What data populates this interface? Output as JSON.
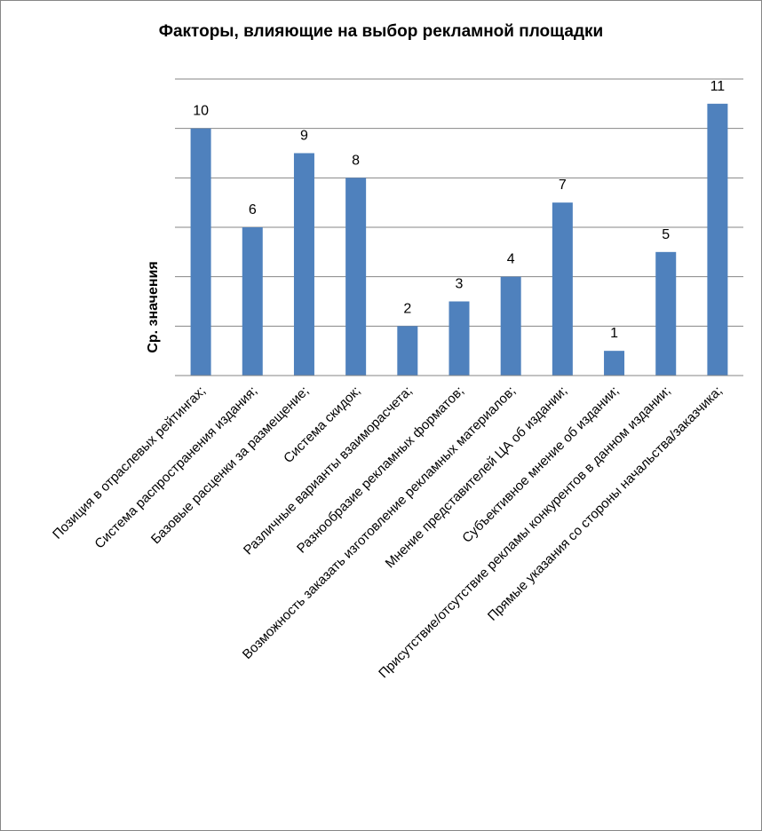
{
  "chart_data": {
    "type": "bar",
    "title": "Факторы, влияющие на выбор рекламной площадки",
    "ylabel": "Ср. значения",
    "xlabel": "",
    "categories": [
      "Позиция в отраслевых рейтингах;",
      "Система распространения издания;",
      "Базовые расценки за размещение;",
      "Система скидок;",
      "Различные варианты взаиморасчета;",
      "Разнообразие рекламных форматов;",
      "Возможность заказать изготовление рекламных материалов;",
      "Мнение представителей ЦА об издании;",
      "Субъективное мнение об издании;",
      "Присутствие/отсутствие рекламы конкурентов в данном издании;",
      "Прямые указания со стороны начальства/заказчика;"
    ],
    "values": [
      10,
      6,
      9,
      8,
      2,
      3,
      4,
      7,
      1,
      5,
      11
    ],
    "data_labels": [
      "10",
      "6",
      "9",
      "8",
      "2",
      "3",
      "4",
      "7",
      "1",
      "5",
      "11"
    ],
    "ylim": [
      0,
      12
    ],
    "grid": true,
    "legend": "none",
    "bar_color": "#4f81bd"
  }
}
